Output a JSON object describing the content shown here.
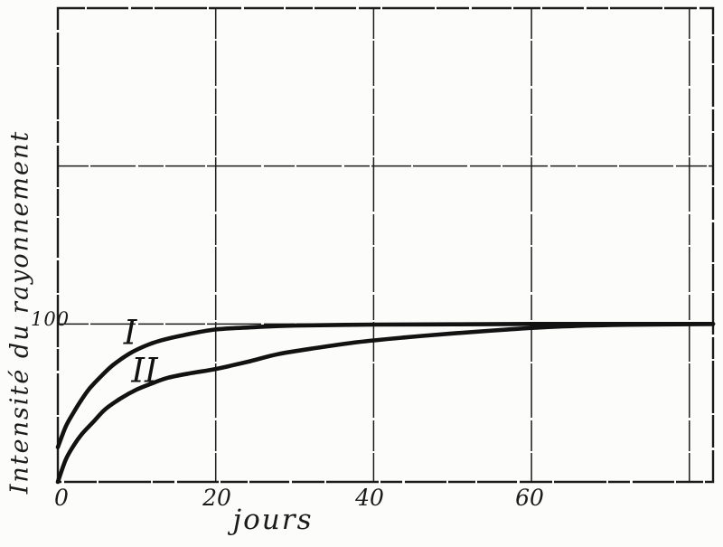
{
  "figure": {
    "description": "Engraved line chart of radiation intensity versus days, two curves I and II rising to an asymptote at 100"
  },
  "chart_data": {
    "type": "line",
    "title": "",
    "xlabel": "jours",
    "ylabel": "Intensité du rayonnement",
    "xlim": [
      0,
      83
    ],
    "ylim": [
      0,
      300
    ],
    "grid": true,
    "legend": "inline curve labels",
    "ink_color": "#1b1b1b",
    "paper_color": "#fcfcfb",
    "x_ticks": [
      {
        "value": 0,
        "label": "0"
      },
      {
        "value": 20,
        "label": "20"
      },
      {
        "value": 40,
        "label": "40"
      },
      {
        "value": 60,
        "label": "60"
      }
    ],
    "y_ticks": [
      {
        "value": 100,
        "label": "100"
      }
    ],
    "x_gridlines": [
      20,
      40,
      60,
      80
    ],
    "y_gridlines": [
      100,
      200
    ],
    "asymptote": 100,
    "series": [
      {
        "name": "I",
        "x": [
          0,
          1,
          2,
          3,
          4,
          5.5,
          7,
          9,
          11,
          13,
          16,
          20,
          25,
          30,
          40,
          50,
          60,
          70,
          83
        ],
        "values": [
          22,
          35,
          44,
          52,
          59,
          67,
          74,
          81,
          86,
          89.5,
          93,
          96.5,
          98,
          99,
          99.6,
          99.8,
          100,
          100,
          100
        ]
      },
      {
        "name": "II",
        "x": [
          0,
          1,
          2,
          3,
          4.5,
          6,
          8,
          10,
          12,
          14,
          17,
          20,
          24,
          28,
          33,
          38,
          44,
          50,
          57,
          64,
          72,
          83
        ],
        "values": [
          0,
          14,
          23,
          30,
          38,
          46,
          53,
          58.5,
          62.5,
          66,
          69,
          71.5,
          76,
          81,
          85,
          88.5,
          91.5,
          94,
          96.5,
          98.5,
          99.5,
          100
        ]
      }
    ]
  }
}
